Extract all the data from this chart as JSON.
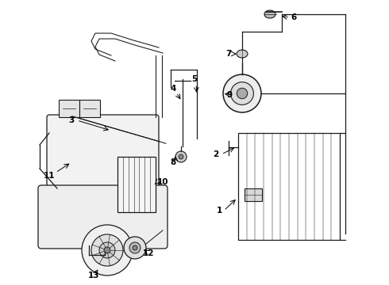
{
  "bg_color": "#ffffff",
  "lc": "#1a1a1a",
  "lw": 0.9,
  "fig_w": 4.9,
  "fig_h": 3.6,
  "dpi": 100
}
